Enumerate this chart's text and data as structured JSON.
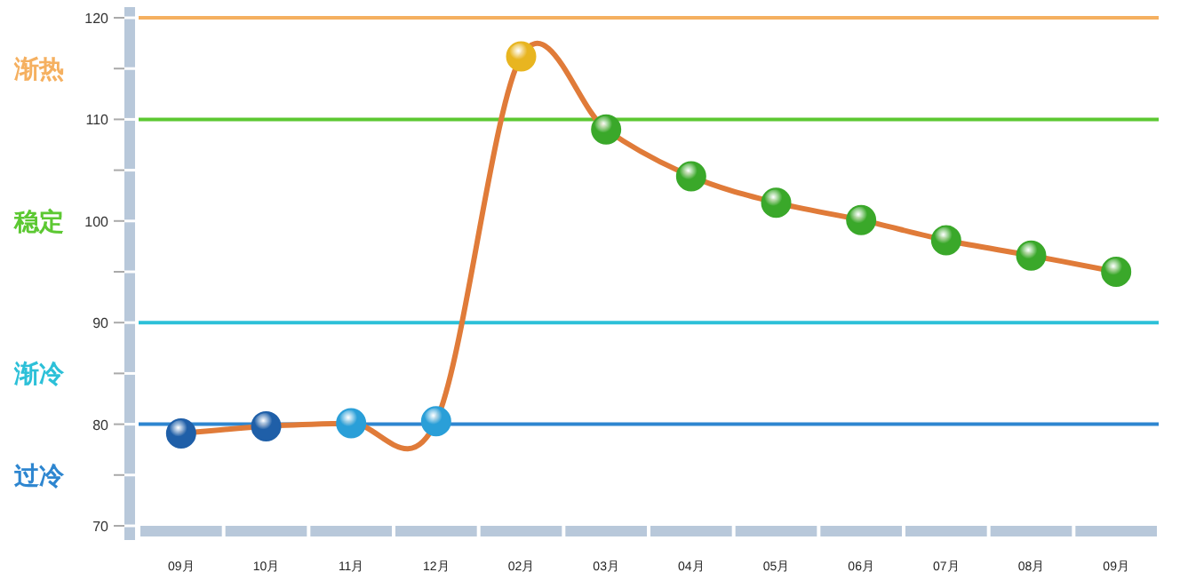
{
  "chart_data": {
    "type": "line",
    "categories": [
      "09月",
      "10月",
      "11月",
      "12月",
      "02月",
      "03月",
      "04月",
      "05月",
      "06月",
      "07月",
      "08月",
      "09月"
    ],
    "series": [
      {
        "color": "#e07b39",
        "colors": [
          "#1f5fa8",
          "#1f5fa8",
          "#2a9fd8",
          "#2a9fd8",
          "#e8b520",
          "#3aa82a",
          "#3aa82a",
          "#3aa82a",
          "#3aa82a",
          "#3aa82a",
          "#3aa82a",
          "#3aa82a"
        ],
        "values": [
          79.1,
          79.8,
          80.1,
          80.3,
          116.2,
          109,
          104.4,
          101.8,
          100.1,
          98.1,
          96.6,
          95
        ]
      }
    ],
    "ylim": [
      70,
      120
    ],
    "yticks": [
      70,
      {
        "value": 75,
        "label": null
      },
      80,
      {
        "value": 85,
        "label": null
      },
      90,
      {
        "value": 95,
        "label": null
      },
      100,
      {
        "value": 105,
        "label": null
      },
      110,
      {
        "value": 115,
        "label": null
      },
      120
    ],
    "ref_lines": [
      {
        "axis": "y",
        "value": 120,
        "color": "#f5b060"
      },
      {
        "axis": "y",
        "value": 110,
        "color": "#5cc832"
      },
      {
        "axis": "y",
        "value": 90,
        "color": "#2cc0d8"
      },
      {
        "axis": "y",
        "value": 80,
        "color": "#2e86d0"
      }
    ],
    "annotations": [
      "渐热",
      "稳定",
      "渐冷",
      "过冷"
    ],
    "marker": "circle",
    "line_style": "solid"
  }
}
